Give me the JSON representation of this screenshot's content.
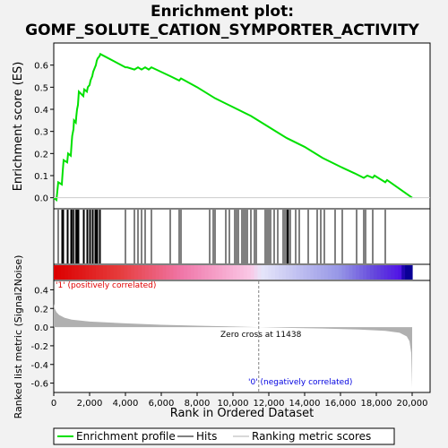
{
  "chart_data": {
    "type": "line",
    "title_line1": "Enrichment plot:",
    "title_line2": "GOMF_SOLUTE_CATION_SYMPORTER_ACTIVITY",
    "xlabel": "Rank in Ordered Dataset",
    "ylabel_top": "Enrichment score (ES)",
    "ylabel_bottom": "Ranked list metric (Signal2Noise)",
    "xlim": [
      0,
      21000
    ],
    "x_ticks": [
      0,
      2000,
      4000,
      6000,
      8000,
      10000,
      12000,
      14000,
      16000,
      18000,
      20000
    ],
    "x_tick_labels": [
      "0",
      "2,000",
      "4,000",
      "6,000",
      "8,000",
      "10,000",
      "12,000",
      "14,000",
      "16,000",
      "18,000",
      "20,000"
    ],
    "es_ylim": [
      -0.05,
      0.7
    ],
    "es_ticks": [
      0.0,
      0.1,
      0.2,
      0.3,
      0.4,
      0.5,
      0.6
    ],
    "es_tick_labels": [
      "0.0",
      "0.1",
      "0.2",
      "0.3",
      "0.4",
      "0.5",
      "0.6"
    ],
    "metric_ylim": [
      -0.7,
      0.5
    ],
    "metric_ticks": [
      0.4,
      0.2,
      0.0,
      -0.2,
      -0.4,
      -0.6
    ],
    "metric_tick_labels": [
      "0.4",
      "0.2",
      "0.0",
      "-0.2",
      "-0.4",
      "-0.6"
    ],
    "enrichment_profile": [
      [
        0,
        0.0
      ],
      [
        150,
        -0.01
      ],
      [
        250,
        0.07
      ],
      [
        450,
        0.06
      ],
      [
        500,
        0.12
      ],
      [
        550,
        0.17
      ],
      [
        750,
        0.16
      ],
      [
        800,
        0.2
      ],
      [
        950,
        0.19
      ],
      [
        1000,
        0.25
      ],
      [
        1030,
        0.28
      ],
      [
        1100,
        0.31
      ],
      [
        1130,
        0.35
      ],
      [
        1230,
        0.34
      ],
      [
        1260,
        0.37
      ],
      [
        1300,
        0.4
      ],
      [
        1350,
        0.42
      ],
      [
        1400,
        0.48
      ],
      [
        1650,
        0.46
      ],
      [
        1700,
        0.49
      ],
      [
        1850,
        0.48
      ],
      [
        1900,
        0.5
      ],
      [
        2000,
        0.51
      ],
      [
        2050,
        0.53
      ],
      [
        2150,
        0.55
      ],
      [
        2200,
        0.57
      ],
      [
        2300,
        0.59
      ],
      [
        2350,
        0.6
      ],
      [
        2400,
        0.62
      ],
      [
        2450,
        0.63
      ],
      [
        2550,
        0.64
      ],
      [
        2600,
        0.65
      ],
      [
        4000,
        0.59
      ],
      [
        4100,
        0.59
      ],
      [
        4500,
        0.58
      ],
      [
        4700,
        0.59
      ],
      [
        4900,
        0.58
      ],
      [
        5100,
        0.59
      ],
      [
        5300,
        0.58
      ],
      [
        5450,
        0.59
      ],
      [
        6500,
        0.55
      ],
      [
        7000,
        0.53
      ],
      [
        7100,
        0.54
      ],
      [
        8000,
        0.5
      ],
      [
        9000,
        0.45
      ],
      [
        10000,
        0.41
      ],
      [
        11000,
        0.37
      ],
      [
        12000,
        0.32
      ],
      [
        13000,
        0.27
      ],
      [
        14000,
        0.23
      ],
      [
        15000,
        0.18
      ],
      [
        16000,
        0.14
      ],
      [
        16800,
        0.11
      ],
      [
        17300,
        0.09
      ],
      [
        17500,
        0.1
      ],
      [
        17800,
        0.09
      ],
      [
        17900,
        0.1
      ],
      [
        18300,
        0.08
      ],
      [
        18500,
        0.07
      ],
      [
        18600,
        0.08
      ],
      [
        20000,
        0.0
      ]
    ],
    "hits": [
      250,
      450,
      500,
      550,
      750,
      800,
      950,
      1000,
      1030,
      1100,
      1130,
      1230,
      1260,
      1300,
      1350,
      1400,
      1650,
      1700,
      1850,
      1900,
      2000,
      2050,
      2150,
      2200,
      2300,
      2350,
      2400,
      2450,
      2550,
      2600,
      4000,
      4500,
      4700,
      4900,
      5100,
      5450,
      6500,
      7000,
      7100,
      8700,
      8900,
      9000,
      9600,
      9800,
      10100,
      10200,
      10300,
      10500,
      10600,
      10700,
      10800,
      11000,
      11200,
      11300,
      11800,
      11900,
      12000,
      12100,
      12300,
      12500,
      12800,
      12900,
      13000,
      13050,
      13100,
      13200,
      13500,
      13700,
      14200,
      14700,
      14900,
      15100,
      15700,
      16100,
      16900,
      17300,
      17400,
      17800,
      18500
    ],
    "metric_curve": [
      [
        0,
        0.25
      ],
      [
        50,
        0.2
      ],
      [
        150,
        0.16
      ],
      [
        300,
        0.13
      ],
      [
        600,
        0.1
      ],
      [
        1000,
        0.08
      ],
      [
        2000,
        0.06
      ],
      [
        4000,
        0.04
      ],
      [
        6000,
        0.025
      ],
      [
        8000,
        0.015
      ],
      [
        10000,
        0.007
      ],
      [
        11438,
        0.0
      ],
      [
        13000,
        -0.008
      ],
      [
        15000,
        -0.015
      ],
      [
        17000,
        -0.025
      ],
      [
        18500,
        -0.04
      ],
      [
        19300,
        -0.06
      ],
      [
        19700,
        -0.1
      ],
      [
        19850,
        -0.15
      ],
      [
        19950,
        -0.28
      ],
      [
        20000,
        -0.65
      ]
    ],
    "zero_cross": 11438,
    "zero_cross_label": "Zero cross at 11438",
    "positive_label": "'1' (positively correlated)",
    "negative_label": "'0' (negatively correlated)",
    "legend": [
      "Enrichment profile",
      "Hits",
      "Ranking metric scores"
    ],
    "colors": {
      "profile": "#00e000",
      "hits": "#000000",
      "metric": "#b0b0b0",
      "positive_text": "#e00000",
      "negative_text": "#0000e0",
      "background": "#ffffff",
      "page": "#f2f2f2"
    }
  }
}
